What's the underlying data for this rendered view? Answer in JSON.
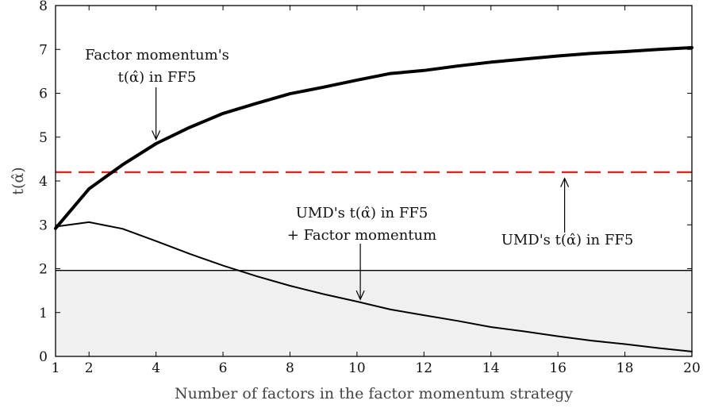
{
  "chart_data": {
    "type": "line",
    "xlabel": "Number of factors in the factor momentum strategy",
    "ylabel": "t(α̂)",
    "xlim": [
      1,
      20
    ],
    "ylim": [
      0,
      8
    ],
    "xticks": [
      1,
      2,
      4,
      6,
      8,
      10,
      12,
      14,
      16,
      18,
      20
    ],
    "yticks": [
      0,
      1,
      2,
      3,
      4,
      5,
      6,
      7,
      8
    ],
    "grid": false,
    "shaded_region": {
      "y_from": 0,
      "y_to": 1.96,
      "color": "#f0f0f0"
    },
    "reference_lines": [
      {
        "id": "significance",
        "y": 1.96,
        "style": "solid",
        "color": "#000000"
      },
      {
        "id": "umd-ff5",
        "y": 4.2,
        "style": "dashed",
        "color": "#d62728"
      }
    ],
    "series": [
      {
        "id": "factor-momentum",
        "x": [
          1,
          2,
          3,
          4,
          5,
          6,
          7,
          8,
          9,
          10,
          11,
          12,
          13,
          14,
          15,
          16,
          17,
          18,
          19,
          20
        ],
        "values": [
          2.92,
          3.82,
          4.37,
          4.85,
          5.22,
          5.54,
          5.77,
          5.99,
          6.14,
          6.3,
          6.45,
          6.52,
          6.62,
          6.71,
          6.78,
          6.85,
          6.91,
          6.95,
          7.0,
          7.04
        ],
        "color": "#000000",
        "weight": "heavy"
      },
      {
        "id": "umd-plus-factor-momentum",
        "x": [
          1,
          2,
          3,
          4,
          5,
          6,
          7,
          8,
          9,
          10,
          11,
          12,
          13,
          14,
          15,
          16,
          17,
          18,
          19,
          20
        ],
        "values": [
          2.96,
          3.06,
          2.91,
          2.63,
          2.34,
          2.07,
          1.83,
          1.61,
          1.42,
          1.25,
          1.07,
          0.94,
          0.81,
          0.67,
          0.57,
          0.46,
          0.36,
          0.28,
          0.19,
          0.11
        ],
        "color": "#000000",
        "weight": "normal"
      }
    ],
    "annotations": [
      {
        "id": "fm-annot",
        "lines": [
          "Factor momentum's",
          "t(α̂) in FF5"
        ],
        "arrow_to": {
          "x": 4,
          "y": 4.95
        }
      },
      {
        "id": "umd-fm-annot",
        "lines": [
          "UMD's t(α̂) in FF5",
          "+ Factor momentum"
        ],
        "arrow_to": {
          "x": 10.1,
          "y": 1.3
        }
      },
      {
        "id": "umd-annot",
        "lines": [
          "UMD's t(α̂) in FF5"
        ],
        "arrow_to": {
          "x": 16.2,
          "y": 4.06
        }
      }
    ]
  }
}
